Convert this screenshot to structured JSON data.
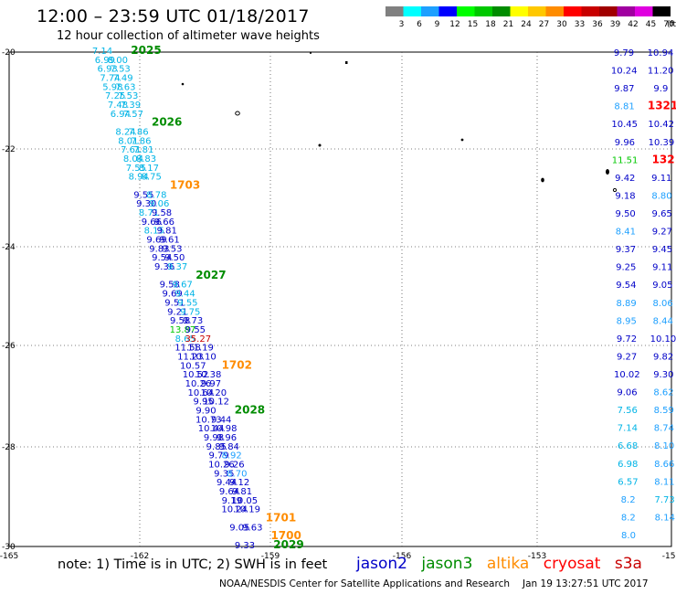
{
  "header": {
    "title": "12:00 – 23:59 UTC 01/18/2017",
    "subtitle": "12 hour collection of altimeter wave heights"
  },
  "legend": {
    "unit": "(ft)",
    "bins": [
      {
        "label": "3",
        "color": "#808080"
      },
      {
        "label": "6",
        "color": "#00ffff"
      },
      {
        "label": "9",
        "color": "#1ea0ff"
      },
      {
        "label": "12",
        "color": "#0000ff"
      },
      {
        "label": "15",
        "color": "#00ff00"
      },
      {
        "label": "18",
        "color": "#00c800"
      },
      {
        "label": "21",
        "color": "#008c00"
      },
      {
        "label": "24",
        "color": "#ffff00"
      },
      {
        "label": "27",
        "color": "#ffc800"
      },
      {
        "label": "30",
        "color": "#ff8c00"
      },
      {
        "label": "33",
        "color": "#ff0000"
      },
      {
        "label": "36",
        "color": "#c80000"
      },
      {
        "label": "39",
        "color": "#a00000"
      },
      {
        "label": "42",
        "color": "#a000a0"
      },
      {
        "label": "45",
        "color": "#e000e0"
      },
      {
        "label": "70",
        "color": "#000000"
      }
    ]
  },
  "axes": {
    "lat_labels": [
      "-20",
      "-22",
      "-24",
      "-26",
      "-28",
      "-30"
    ],
    "lon_labels": [
      "-165",
      "-162",
      "-159",
      "-156",
      "-153",
      "-150"
    ]
  },
  "track_colors": {
    "jason2": "#0000c8",
    "jason3": "#008c00",
    "altika": "#ff8c00",
    "cryosat": "#ff0000",
    "s3a": "#c80000",
    "cyan": "#00b4e6",
    "lightblue": "#1ea0ff",
    "green": "#00c800",
    "red": "#c80000"
  },
  "track1": [
    {
      "t": "7.14",
      "c": "cyan"
    },
    {
      "t": "2025",
      "c": "jason3",
      "ts": true
    },
    {
      "t": "6.99",
      "c": "cyan"
    },
    {
      "t": "8.00",
      "c": "cyan"
    },
    {
      "t": "6.93",
      "c": "cyan"
    },
    {
      "t": "7.53",
      "c": "cyan"
    },
    {
      "t": "7.74",
      "c": "cyan"
    },
    {
      "t": "7.49",
      "c": "cyan"
    },
    {
      "t": "5.98",
      "c": "cyan"
    },
    {
      "t": "7.63",
      "c": "cyan"
    },
    {
      "t": "7.25",
      "c": "cyan"
    },
    {
      "t": "7.53",
      "c": "cyan"
    },
    {
      "t": "7.48",
      "c": "cyan"
    },
    {
      "t": "7.39",
      "c": "cyan"
    },
    {
      "t": "6.94",
      "c": "cyan"
    },
    {
      "t": "7.57",
      "c": "cyan"
    },
    {
      "t": "2026",
      "c": "jason3",
      "ts": true
    },
    {
      "t": "8.24",
      "c": "cyan"
    },
    {
      "t": "7.86",
      "c": "cyan"
    },
    {
      "t": "8.01",
      "c": "cyan"
    },
    {
      "t": "7.86",
      "c": "cyan"
    },
    {
      "t": "7.61",
      "c": "cyan"
    },
    {
      "t": "7.81",
      "c": "cyan"
    },
    {
      "t": "8.04",
      "c": "cyan"
    },
    {
      "t": "8.83",
      "c": "cyan"
    },
    {
      "t": "7.55",
      "c": "cyan"
    },
    {
      "t": "8.17",
      "c": "cyan"
    },
    {
      "t": "8.94",
      "c": "cyan"
    },
    {
      "t": "8.75",
      "c": "cyan"
    },
    {
      "t": "1703",
      "c": "altika",
      "ts": true
    },
    {
      "t": "9.55",
      "c": "jason2"
    },
    {
      "t": "8.78",
      "c": "cyan"
    },
    {
      "t": "9.30",
      "c": "jason2"
    },
    {
      "t": "9.06",
      "c": "cyan"
    },
    {
      "t": "8.71",
      "c": "cyan"
    },
    {
      "t": "9.58",
      "c": "jason2"
    },
    {
      "t": "9.66",
      "c": "jason2"
    },
    {
      "t": "9.66",
      "c": "jason2"
    },
    {
      "t": "8.15",
      "c": "cyan"
    },
    {
      "t": "9.81",
      "c": "jason2"
    },
    {
      "t": "9.69",
      "c": "jason2"
    },
    {
      "t": "9.61",
      "c": "jason2"
    },
    {
      "t": "9.83",
      "c": "jason2"
    },
    {
      "t": "9.53",
      "c": "jason2"
    },
    {
      "t": "9.54",
      "c": "jason2"
    },
    {
      "t": "9.50",
      "c": "jason2"
    },
    {
      "t": "9.36",
      "c": "jason2"
    },
    {
      "t": "9.37",
      "c": "cyan"
    },
    {
      "t": "2027",
      "c": "jason3",
      "ts": true
    },
    {
      "t": "9.58",
      "c": "jason2"
    },
    {
      "t": "9.67",
      "c": "cyan"
    },
    {
      "t": "9.69",
      "c": "jason2"
    },
    {
      "t": "9.44",
      "c": "cyan"
    },
    {
      "t": "9.51",
      "c": "jason2"
    },
    {
      "t": "9.55",
      "c": "cyan"
    },
    {
      "t": "9.21",
      "c": "jason2"
    },
    {
      "t": "9.75",
      "c": "cyan"
    },
    {
      "t": "9.58",
      "c": "jason2"
    },
    {
      "t": "9.73",
      "c": "jason2"
    },
    {
      "t": "13.87",
      "c": "green"
    },
    {
      "t": "9.55",
      "c": "jason2"
    },
    {
      "t": "8.65",
      "c": "cyan"
    },
    {
      "t": "35.27",
      "c": "red"
    },
    {
      "t": "11.58",
      "c": "jason2"
    },
    {
      "t": "11.19",
      "c": "jason2"
    },
    {
      "t": "11.23",
      "c": "jason2"
    },
    {
      "t": "10.10",
      "c": "jason2"
    },
    {
      "t": "10.57",
      "c": "jason2"
    },
    {
      "t": "1702",
      "c": "altika",
      "ts": true
    },
    {
      "t": "10.52",
      "c": "jason2"
    },
    {
      "t": "10.38",
      "c": "jason2"
    },
    {
      "t": "10.26",
      "c": "jason2"
    },
    {
      "t": "9.97",
      "c": "jason2"
    },
    {
      "t": "10.64",
      "c": "jason2"
    },
    {
      "t": "10.20",
      "c": "jason2"
    },
    {
      "t": "9.95",
      "c": "jason2"
    },
    {
      "t": "10.12",
      "c": "jason2"
    },
    {
      "t": "9.90",
      "c": "jason2"
    },
    {
      "t": "2028",
      "c": "jason3",
      "ts": true
    },
    {
      "t": "10.73",
      "c": "jason2"
    },
    {
      "t": "9.44",
      "c": "jason2"
    },
    {
      "t": "10.44",
      "c": "jason2"
    },
    {
      "t": "10.98",
      "c": "jason2"
    },
    {
      "t": "9.98",
      "c": "jason2"
    },
    {
      "t": "9.96",
      "c": "jason2"
    },
    {
      "t": "9.85",
      "c": "jason2"
    },
    {
      "t": "9.84",
      "c": "jason2"
    },
    {
      "t": "9.79",
      "c": "jason2"
    },
    {
      "t": "8.92",
      "c": "lightblue"
    },
    {
      "t": "10.26",
      "c": "jason2"
    },
    {
      "t": "9.26",
      "c": "jason2"
    },
    {
      "t": "9.35",
      "c": "jason2"
    },
    {
      "t": "8.70",
      "c": "lightblue"
    },
    {
      "t": "9.44",
      "c": "jason2"
    },
    {
      "t": "9.12",
      "c": "jason2"
    },
    {
      "t": "9.64",
      "c": "jason2"
    },
    {
      "t": "9.81",
      "c": "jason2"
    },
    {
      "t": "9.19",
      "c": "jason2"
    },
    {
      "t": "10.05",
      "c": "jason2"
    },
    {
      "t": "10.24",
      "c": "jason2"
    },
    {
      "t": "10.19",
      "c": "jason2"
    },
    {
      "t": "1701",
      "c": "altika",
      "ts": true
    },
    {
      "t": "9.05",
      "c": "jason2"
    },
    {
      "t": "9.63",
      "c": "jason2"
    },
    {
      "t": "1700",
      "c": "altika",
      "ts": true
    },
    {
      "t": "9.33",
      "c": "jason2"
    },
    {
      "t": "2029",
      "c": "jason3",
      "ts": true
    }
  ],
  "track2": [
    {
      "t": "9.79",
      "c": "jason2"
    },
    {
      "t": "10.94",
      "c": "jason2"
    },
    {
      "t": "10.24",
      "c": "jason2"
    },
    {
      "t": "11.20",
      "c": "jason2"
    },
    {
      "t": "9.87",
      "c": "jason2"
    },
    {
      "t": "9.9",
      "c": "jason2"
    },
    {
      "t": "8.81",
      "c": "lightblue"
    },
    {
      "t": "1321",
      "c": "cryosat",
      "ts": true
    },
    {
      "t": "10.45",
      "c": "jason2"
    },
    {
      "t": "10.42",
      "c": "jason2"
    },
    {
      "t": "9.96",
      "c": "jason2"
    },
    {
      "t": "10.39",
      "c": "jason2"
    },
    {
      "t": "11.51",
      "c": "green"
    },
    {
      "t": "132",
      "c": "cryosat",
      "ts": true
    },
    {
      "t": "9.42",
      "c": "jason2"
    },
    {
      "t": "9.11",
      "c": "jason2"
    },
    {
      "t": "9.18",
      "c": "jason2"
    },
    {
      "t": "8.80",
      "c": "lightblue"
    },
    {
      "t": "9.50",
      "c": "jason2"
    },
    {
      "t": "9.65",
      "c": "jason2"
    },
    {
      "t": "8.41",
      "c": "lightblue"
    },
    {
      "t": "9.27",
      "c": "jason2"
    },
    {
      "t": "9.37",
      "c": "jason2"
    },
    {
      "t": "9.45",
      "c": "jason2"
    },
    {
      "t": "9.25",
      "c": "jason2"
    },
    {
      "t": "9.11",
      "c": "jason2"
    },
    {
      "t": "9.54",
      "c": "jason2"
    },
    {
      "t": "9.05",
      "c": "jason2"
    },
    {
      "t": "8.89",
      "c": "lightblue"
    },
    {
      "t": "8.06",
      "c": "lightblue"
    },
    {
      "t": "8.95",
      "c": "lightblue"
    },
    {
      "t": "8.44",
      "c": "lightblue"
    },
    {
      "t": "9.72",
      "c": "jason2"
    },
    {
      "t": "10.10",
      "c": "jason2"
    },
    {
      "t": "9.27",
      "c": "jason2"
    },
    {
      "t": "9.82",
      "c": "jason2"
    },
    {
      "t": "10.02",
      "c": "jason2"
    },
    {
      "t": "9.30",
      "c": "jason2"
    },
    {
      "t": "9.06",
      "c": "jason2"
    },
    {
      "t": "8.62",
      "c": "lightblue"
    },
    {
      "t": "7.56",
      "c": "cyan"
    },
    {
      "t": "8.59",
      "c": "lightblue"
    },
    {
      "t": "7.14",
      "c": "cyan"
    },
    {
      "t": "8.74",
      "c": "lightblue"
    },
    {
      "t": "6.68",
      "c": "cyan"
    },
    {
      "t": "8.10",
      "c": "lightblue"
    },
    {
      "t": "6.98",
      "c": "cyan"
    },
    {
      "t": "8.66",
      "c": "lightblue"
    },
    {
      "t": "6.57",
      "c": "cyan"
    },
    {
      "t": "8.11",
      "c": "lightblue"
    },
    {
      "t": "8.2",
      "c": "lightblue"
    },
    {
      "t": "7.73",
      "c": "cyan"
    },
    {
      "t": "8.2",
      "c": "lightblue"
    },
    {
      "t": "8.14",
      "c": "lightblue"
    },
    {
      "t": "8.0",
      "c": "lightblue"
    }
  ],
  "footer": {
    "note": "note:  1) Time is in UTC;  2) SWH is in feet",
    "satellites": [
      {
        "name": "jason2",
        "color": "#0000c8"
      },
      {
        "name": "jason3",
        "color": "#008c00"
      },
      {
        "name": "altika",
        "color": "#ff8c00"
      },
      {
        "name": "cryosat",
        "color": "#ff0000"
      },
      {
        "name": "s3a",
        "color": "#c80000"
      }
    ],
    "credit": "NOAA/NESDIS Center for Satellite Applications and Research",
    "timestamp": "Jan 19 13:27:51 UTC 2017"
  }
}
